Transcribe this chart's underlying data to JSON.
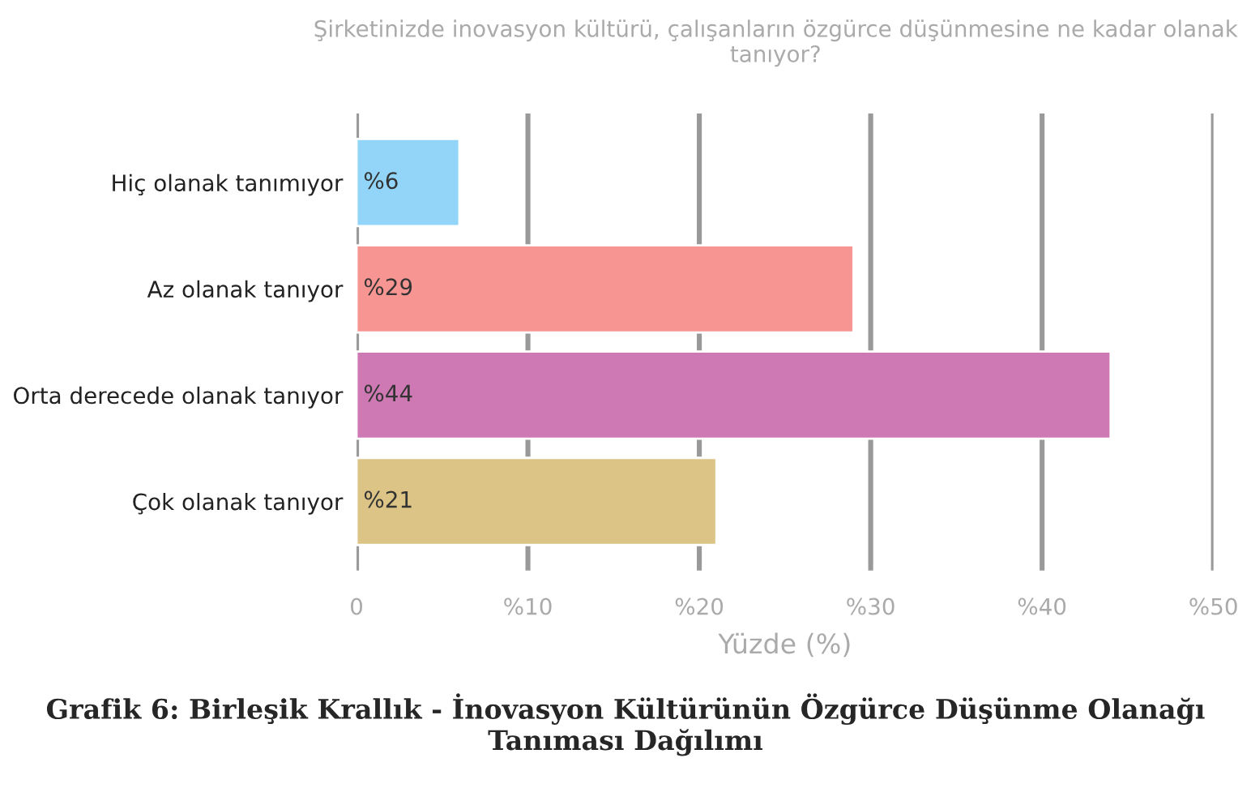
{
  "chart_data": {
    "type": "bar",
    "orientation": "horizontal",
    "title": "Şirketinizde inovasyon kültürü, çalışanların özgürce düşünmesine ne kadar olanak tanıyor?",
    "categories": [
      "Hiç olanak tanımıyor",
      "Az olanak tanıyor",
      "Orta derecede olanak tanıyor",
      "Çok olanak tanıyor"
    ],
    "values": [
      6,
      29,
      44,
      21
    ],
    "value_labels": [
      "%6",
      "%29",
      "%44",
      "%21"
    ],
    "colors": [
      "#93d5f8",
      "#f79593",
      "#cf79b4",
      "#dcc486"
    ],
    "xlim": [
      0,
      50
    ],
    "xticks": [
      0,
      {
        "value": 10,
        "label": "%10"
      },
      {
        "value": 20,
        "label": "%20"
      },
      {
        "value": 30,
        "label": "%30"
      },
      {
        "value": 40,
        "label": "%40"
      },
      {
        "value": 50,
        "label": "%50"
      }
    ],
    "xlabel": "Yüzde (%)",
    "grid": "x",
    "annotations": [
      "Grafik 6: Birleşik Krallık - İnovasyon Kültürünün Özgürce Düşünme Olanağı Tanıması Dağılımı"
    ]
  }
}
